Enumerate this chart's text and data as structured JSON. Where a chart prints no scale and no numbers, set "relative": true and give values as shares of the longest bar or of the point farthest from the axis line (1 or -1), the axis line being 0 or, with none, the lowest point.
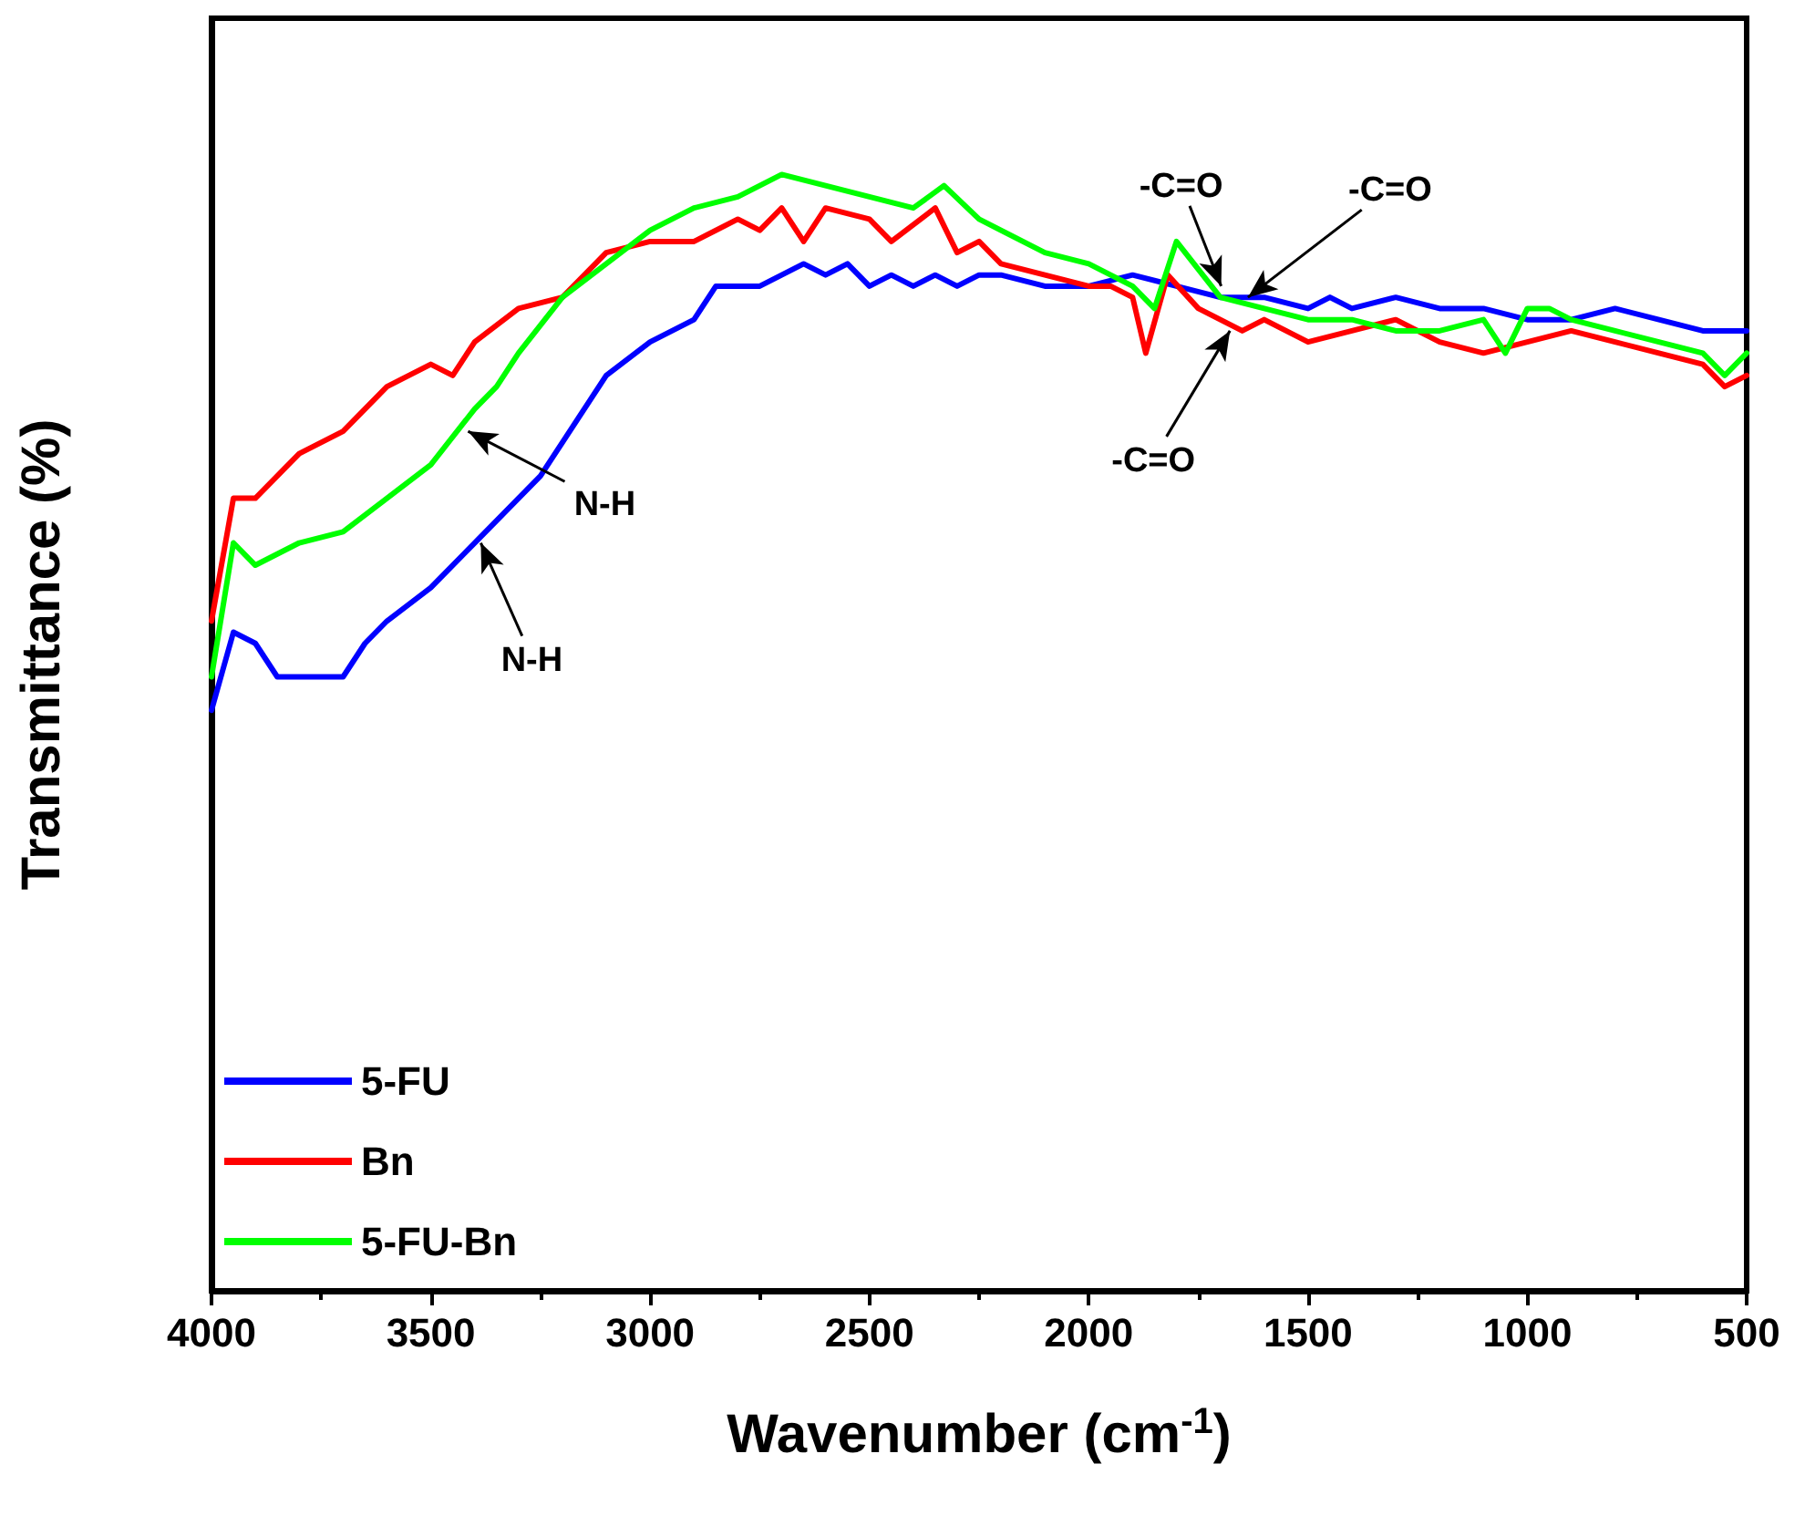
{
  "chart_data": {
    "type": "line",
    "relative": true,
    "xlabel": "Wavenumber (cm$^{-1}$)",
    "ylabel": "Transmittance (%)",
    "xlim": [
      4000,
      500
    ],
    "xticks": [
      4000,
      3500,
      3000,
      2500,
      2000,
      1500,
      1000,
      500
    ],
    "grid": false,
    "legend": "bottom left",
    "marker": "none",
    "line_style": "solid",
    "series": [
      {
        "name": "5-FU",
        "color": "#0000ff",
        "x": [
          4000,
          3950,
          3900,
          3850,
          3800,
          3700,
          3650,
          3600,
          3500,
          3400,
          3300,
          3250,
          3200,
          3100,
          3000,
          2900,
          2850,
          2750,
          2700,
          2650,
          2600,
          2550,
          2500,
          2450,
          2400,
          2350,
          2300,
          2250,
          2200,
          2100,
          2000,
          1900,
          1800,
          1700,
          1600,
          1500,
          1450,
          1400,
          1300,
          1200,
          1100,
          1000,
          900,
          800,
          700,
          600,
          550,
          500
        ],
        "values": [
          0.52,
          0.59,
          0.58,
          0.55,
          0.55,
          0.55,
          0.58,
          0.6,
          0.63,
          0.67,
          0.71,
          0.73,
          0.76,
          0.82,
          0.85,
          0.87,
          0.9,
          0.9,
          0.91,
          0.92,
          0.91,
          0.92,
          0.9,
          0.91,
          0.9,
          0.91,
          0.9,
          0.91,
          0.91,
          0.9,
          0.9,
          0.91,
          0.9,
          0.89,
          0.89,
          0.88,
          0.89,
          0.88,
          0.89,
          0.88,
          0.88,
          0.87,
          0.87,
          0.88,
          0.87,
          0.86,
          0.86,
          0.86
        ]
      },
      {
        "name": "Bn",
        "color": "#ff0000",
        "x": [
          4000,
          3950,
          3900,
          3800,
          3700,
          3600,
          3500,
          3450,
          3400,
          3300,
          3200,
          3100,
          3000,
          2900,
          2800,
          2750,
          2700,
          2650,
          2600,
          2500,
          2450,
          2350,
          2300,
          2250,
          2200,
          2100,
          2000,
          1950,
          1900,
          1870,
          1820,
          1750,
          1650,
          1600,
          1500,
          1400,
          1300,
          1200,
          1100,
          1000,
          900,
          800,
          700,
          600,
          550,
          500
        ],
        "values": [
          0.6,
          0.71,
          0.71,
          0.75,
          0.77,
          0.81,
          0.83,
          0.82,
          0.85,
          0.88,
          0.89,
          0.93,
          0.94,
          0.94,
          0.96,
          0.95,
          0.97,
          0.94,
          0.97,
          0.96,
          0.94,
          0.97,
          0.93,
          0.94,
          0.92,
          0.91,
          0.9,
          0.9,
          0.89,
          0.84,
          0.91,
          0.88,
          0.86,
          0.87,
          0.85,
          0.86,
          0.87,
          0.85,
          0.84,
          0.85,
          0.86,
          0.85,
          0.84,
          0.83,
          0.81,
          0.82
        ]
      },
      {
        "name": "5-FU-Bn",
        "color": "#00ff00",
        "x": [
          4000,
          3950,
          3900,
          3800,
          3700,
          3600,
          3500,
          3400,
          3350,
          3300,
          3200,
          3100,
          3000,
          2900,
          2800,
          2700,
          2600,
          2500,
          2400,
          2330,
          2250,
          2100,
          2000,
          1900,
          1850,
          1800,
          1700,
          1600,
          1500,
          1400,
          1300,
          1200,
          1100,
          1050,
          1000,
          950,
          900,
          800,
          700,
          600,
          550,
          500
        ],
        "values": [
          0.55,
          0.67,
          0.65,
          0.67,
          0.68,
          0.71,
          0.74,
          0.79,
          0.81,
          0.84,
          0.89,
          0.92,
          0.95,
          0.97,
          0.98,
          1.0,
          0.99,
          0.98,
          0.97,
          0.99,
          0.96,
          0.93,
          0.92,
          0.9,
          0.88,
          0.94,
          0.89,
          0.88,
          0.87,
          0.87,
          0.86,
          0.86,
          0.87,
          0.84,
          0.88,
          0.88,
          0.87,
          0.86,
          0.85,
          0.84,
          0.82,
          0.84
        ]
      }
    ],
    "annotations": [
      {
        "text": "N-H",
        "x": 3415,
        "y": 0.77
      },
      {
        "text": "N-H",
        "x": 3386,
        "y": 0.67
      },
      {
        "text": "-C=O",
        "x": 1698,
        "y": 0.9
      },
      {
        "text": "-C=O",
        "x": 1637,
        "y": 0.89
      },
      {
        "text": "-C=O",
        "x": 1678,
        "y": 0.86
      }
    ]
  }
}
